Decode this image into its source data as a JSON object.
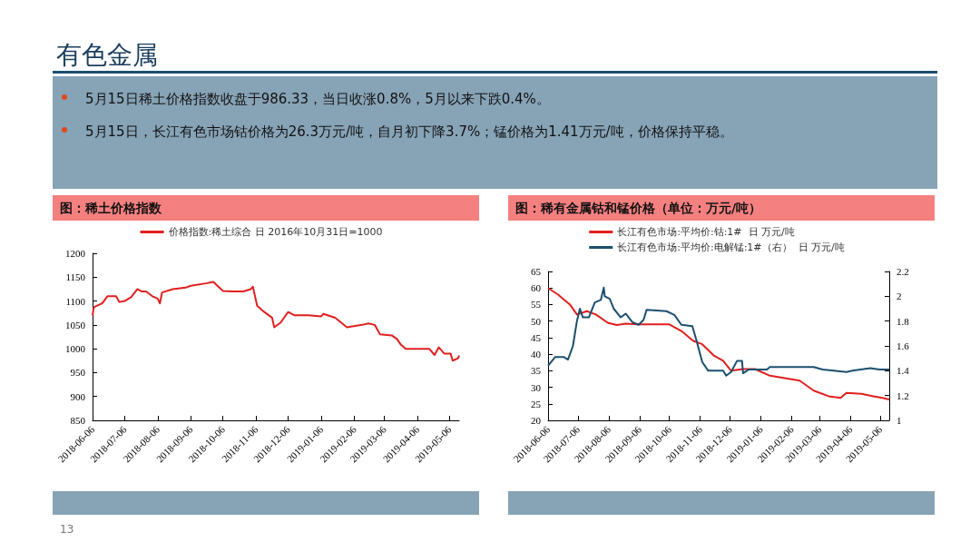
{
  "chart_data": [
    {
      "type": "line",
      "title": "图：稀土价格指数",
      "annotations": [
        "有色金属",
        "5月15日稀土价格指数收盘于986.33，当日收涨0.8%，5月以来下跌0.4%。",
        "5月15日，长江有色市场钴价格为26.3万元/吨，自月初下降3.7%；锰价格为1.41万元/吨，价格保持平稳。",
        "13"
      ],
      "series": [
        {
          "name": "价格指数:稀土综合 日 2016年10月31日=1000",
          "color": "#e0201e",
          "x": [
            "2018-06-06",
            "2018-06-07",
            "2018-06-08",
            "2018-06-15",
            "2018-06-20",
            "2018-06-28",
            "2018-07-01",
            "2018-07-06",
            "2018-07-12",
            "2018-07-18",
            "2018-07-22",
            "2018-07-26",
            "2018-08-01",
            "2018-08-06",
            "2018-08-08",
            "2018-08-10",
            "2018-08-20",
            "2018-09-01",
            "2018-09-06",
            "2018-09-20",
            "2018-09-27",
            "2018-10-06",
            "2018-10-15",
            "2018-10-25",
            "2018-11-01",
            "2018-11-03",
            "2018-11-07",
            "2018-11-12",
            "2018-11-18",
            "2018-11-21",
            "2018-11-23",
            "2018-11-29",
            "2018-12-06",
            "2018-12-12",
            "2018-12-25",
            "2019-01-06",
            "2019-01-08",
            "2019-01-19",
            "2019-01-30",
            "2019-02-13",
            "2019-02-19",
            "2019-02-25",
            "2019-03-02",
            "2019-03-13",
            "2019-03-18",
            "2019-03-21",
            "2019-03-26",
            "2019-04-06",
            "2019-04-17",
            "2019-04-22",
            "2019-04-26",
            "2019-05-01",
            "2019-05-07",
            "2019-05-09",
            "2019-05-14",
            "2019-05-15"
          ],
          "values": [
            1070,
            1085,
            1088,
            1095,
            1110,
            1110,
            1098,
            1100,
            1108,
            1125,
            1120,
            1120,
            1110,
            1105,
            1095,
            1118,
            1125,
            1128,
            1132,
            1137,
            1140,
            1121,
            1120,
            1120,
            1125,
            1130,
            1090,
            1080,
            1070,
            1065,
            1045,
            1055,
            1077,
            1070,
            1070,
            1068,
            1073,
            1065,
            1045,
            1050,
            1053,
            1050,
            1030,
            1028,
            1020,
            1010,
            1000,
            1000,
            1000,
            987,
            1003,
            990,
            990,
            975,
            980,
            986
          ]
        }
      ],
      "xlim": [
        "2018-06-06",
        "2019-05-15"
      ],
      "xticks": [
        "2018-06-06",
        "2018-07-06",
        "2018-08-06",
        "2018-09-06",
        "2018-10-06",
        "2018-11-06",
        "2018-12-06",
        "2019-01-06",
        "2019-02-06",
        "2019-03-06",
        "2019-04-06",
        "2019-05-06"
      ],
      "ylim": [
        850,
        1200
      ],
      "yticks": [
        850,
        900,
        950,
        1000,
        1050,
        1100,
        1150,
        1200
      ],
      "grid": false,
      "legend": "top",
      "marker": "none",
      "line_style": "solid"
    },
    {
      "type": "line",
      "title": "图：稀有金属钴和锰价格（单位：万元/吨）",
      "series": [
        {
          "name": "长江有色市场:平均价:钴:1#  日 万元/吨",
          "color": "#e0201e",
          "x": [
            "2018-06-06",
            "2018-06-16",
            "2018-06-28",
            "2018-07-05",
            "2018-07-15",
            "2018-07-24",
            "2018-08-05",
            "2018-08-14",
            "2018-08-23",
            "2018-09-04",
            "2018-10-06",
            "2018-10-18",
            "2018-10-30",
            "2018-11-08",
            "2018-11-20",
            "2018-11-29",
            "2018-12-07",
            "2018-12-19",
            "2018-12-31",
            "2019-01-15",
            "2019-02-14",
            "2019-02-28",
            "2019-03-15",
            "2019-03-27",
            "2019-04-02",
            "2019-04-17",
            "2019-04-29",
            "2019-05-08",
            "2019-05-15"
          ],
          "values": [
            60,
            58,
            55,
            52,
            53,
            52,
            49.5,
            48.8,
            49.2,
            49,
            49,
            47,
            44,
            43,
            39.5,
            38,
            35,
            35.5,
            35.5,
            33.5,
            32,
            29,
            27.3,
            26.8,
            28.3,
            28,
            27.3,
            26.8,
            26.3
          ]
        },
        {
          "name": "长江有色市场:平均价:电解锰:1#（右）  日 万元/吨",
          "color": "#1b4f6e",
          "axis": "y2",
          "x": [
            "2018-06-06",
            "2018-06-13",
            "2018-06-22",
            "2018-06-26",
            "2018-07-01",
            "2018-07-05",
            "2018-07-08",
            "2018-07-11",
            "2018-07-17",
            "2018-07-23",
            "2018-07-29",
            "2018-08-01",
            "2018-08-02",
            "2018-08-07",
            "2018-08-11",
            "2018-08-18",
            "2018-08-23",
            "2018-08-30",
            "2018-09-05",
            "2018-09-10",
            "2018-09-13",
            "2018-10-03",
            "2018-10-11",
            "2018-10-18",
            "2018-10-29",
            "2018-11-02",
            "2018-11-08",
            "2018-11-14",
            "2018-11-29",
            "2018-12-02",
            "2018-12-07",
            "2018-12-13",
            "2018-12-18",
            "2018-12-19",
            "2018-12-25",
            "2019-01-12",
            "2019-01-15",
            "2019-02-28",
            "2019-03-09",
            "2019-04-02",
            "2019-04-08",
            "2019-04-26",
            "2019-05-05",
            "2019-05-15"
          ],
          "values": [
            1.44,
            1.51,
            1.51,
            1.49,
            1.6,
            1.8,
            1.9,
            1.83,
            1.83,
            1.95,
            1.97,
            2.07,
            2.0,
            1.98,
            1.9,
            1.83,
            1.86,
            1.79,
            1.77,
            1.81,
            1.89,
            1.88,
            1.85,
            1.77,
            1.76,
            1.65,
            1.47,
            1.4,
            1.4,
            1.36,
            1.39,
            1.48,
            1.48,
            1.38,
            1.41,
            1.41,
            1.43,
            1.43,
            1.41,
            1.39,
            1.4,
            1.42,
            1.41,
            1.41
          ]
        }
      ],
      "xlim": [
        "2018-06-06",
        "2019-05-15"
      ],
      "xticks": [
        "2018-06-06",
        "2018-07-06",
        "2018-08-06",
        "2018-09-06",
        "2018-10-06",
        "2018-11-06",
        "2018-12-06",
        "2019-01-06",
        "2019-02-06",
        "2019-03-06",
        "2019-04-06",
        "2019-05-06"
      ],
      "ylim": [
        20,
        65
      ],
      "yticks": [
        20,
        25,
        30,
        35,
        40,
        45,
        50,
        55,
        60,
        65
      ],
      "y2lim": [
        1,
        2.2
      ],
      "y2ticks": [
        1,
        1.2,
        1.4,
        1.6,
        1.8,
        2,
        2.2
      ],
      "grid": false,
      "legend": "top",
      "marker": "none",
      "line_style": "solid"
    }
  ]
}
